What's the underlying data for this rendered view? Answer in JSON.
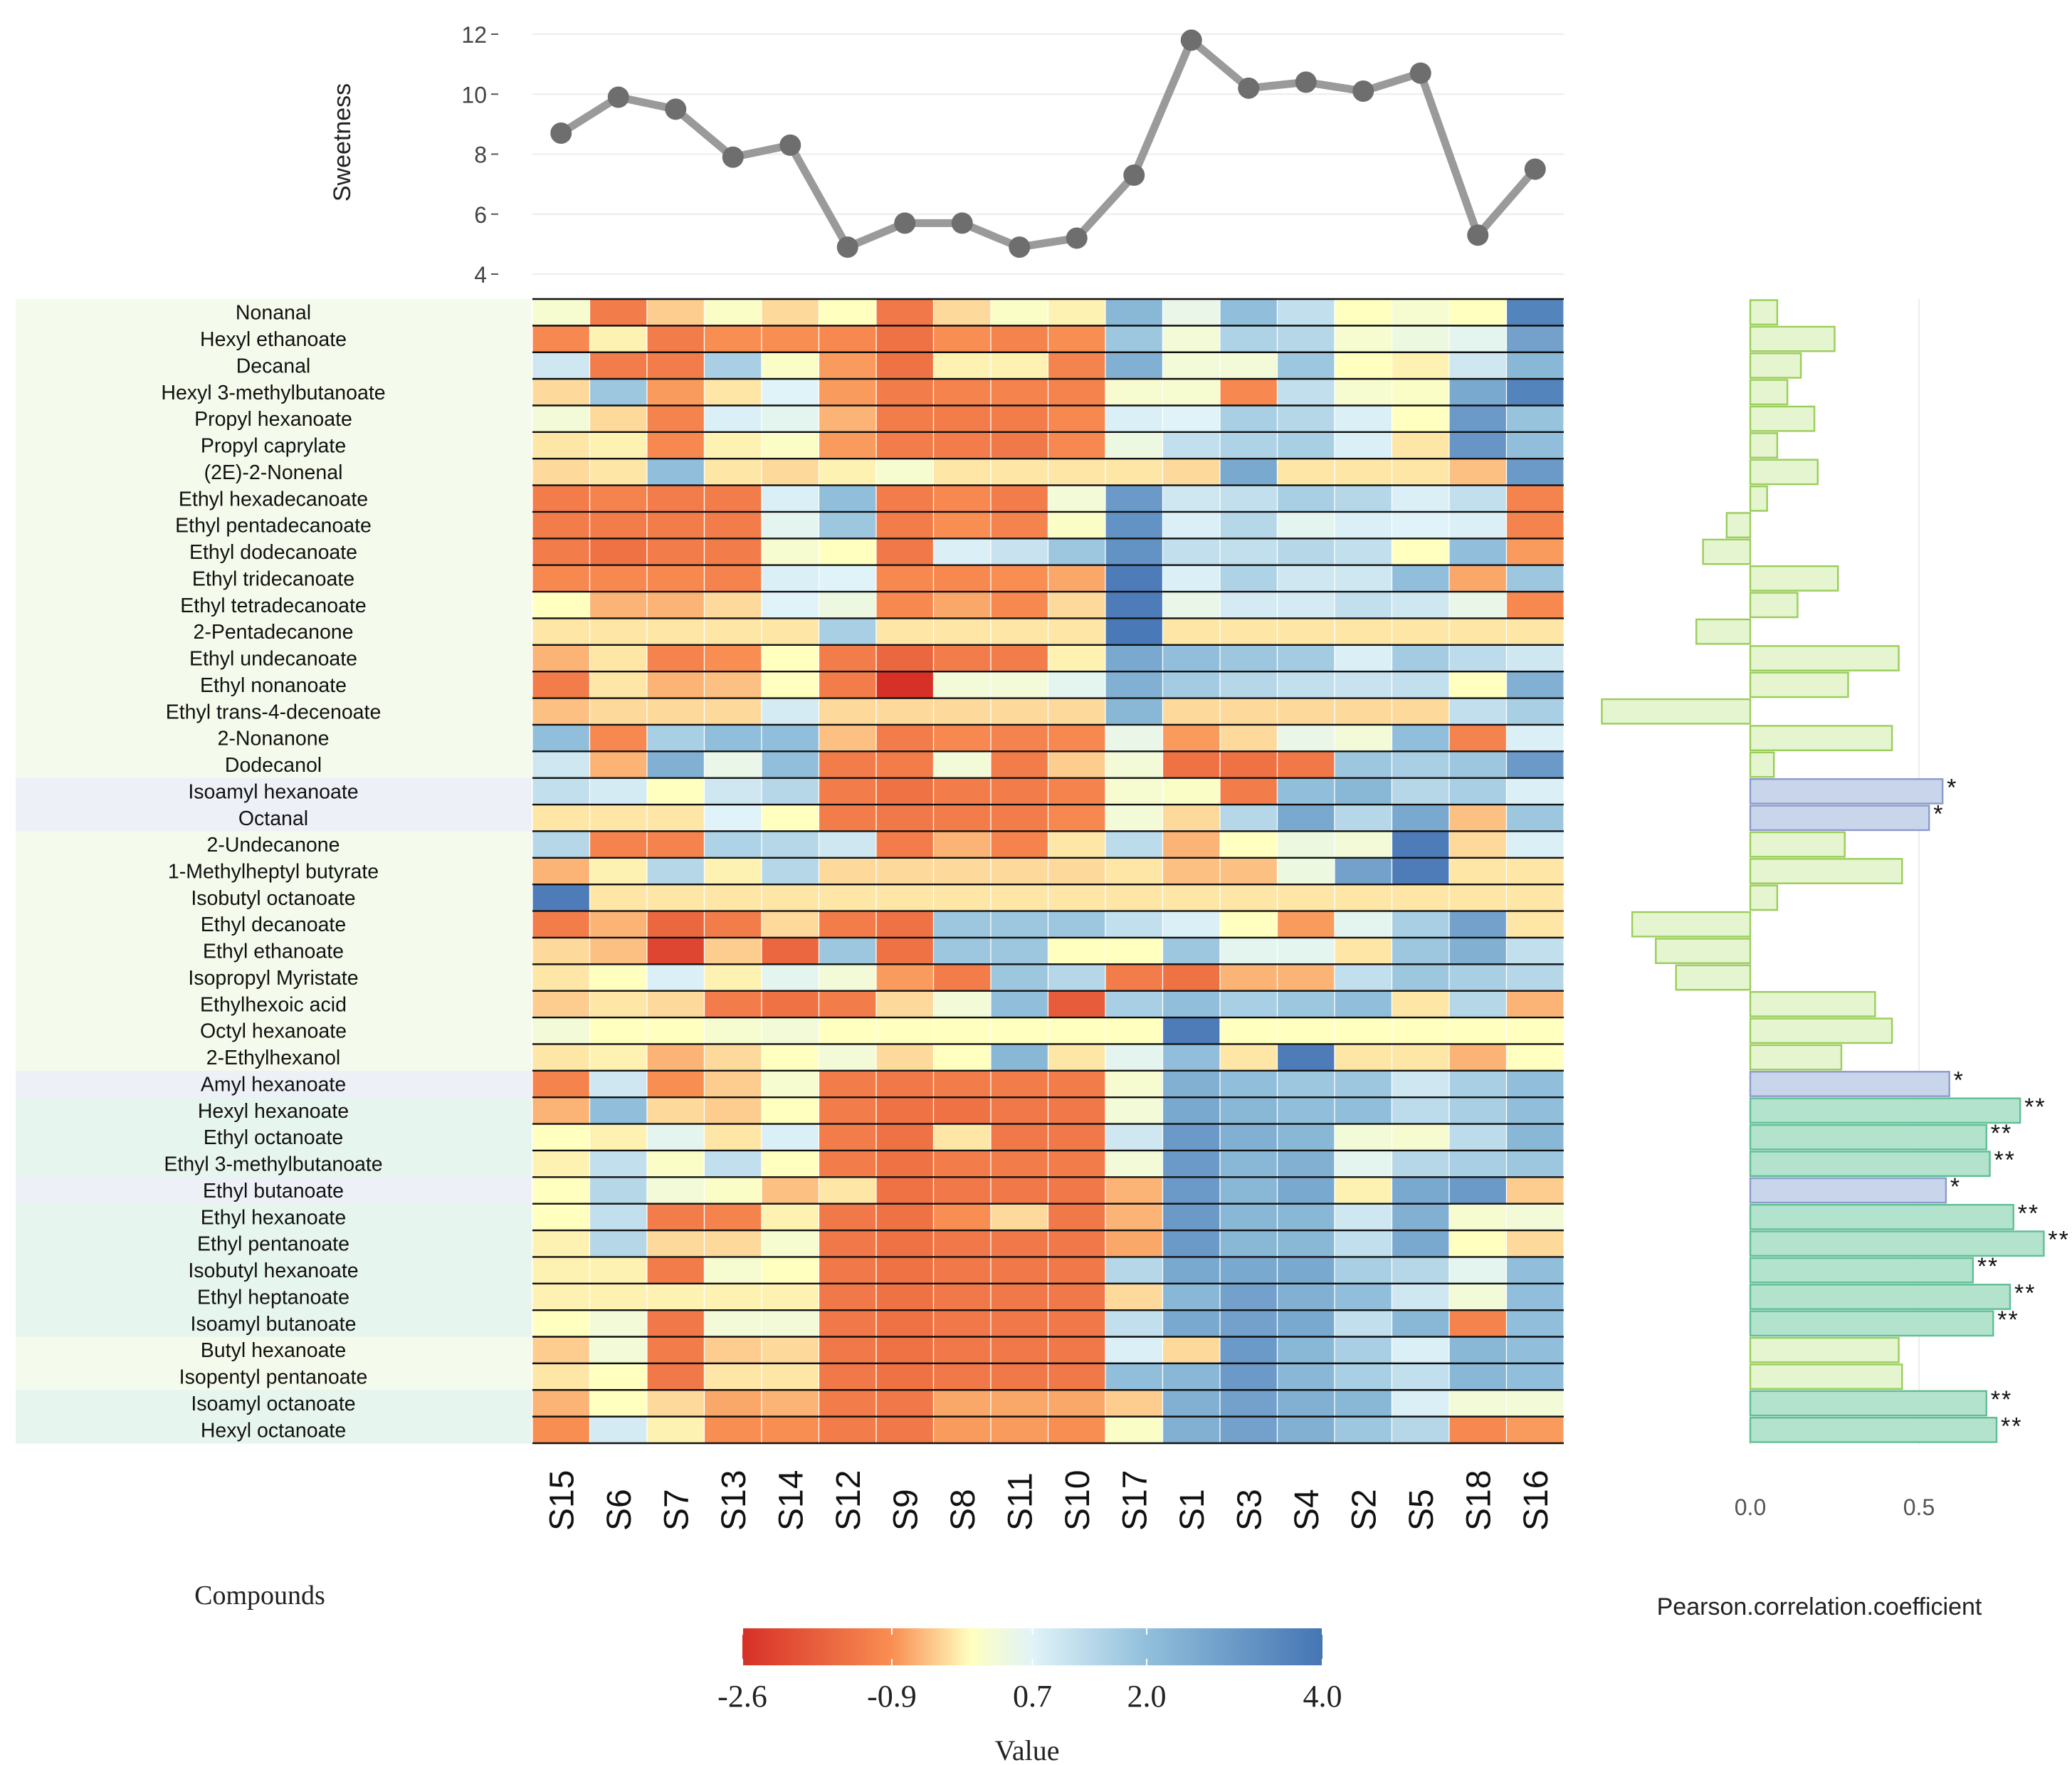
{
  "chart_data": [
    {
      "type": "line",
      "ylabel": "Sweetness",
      "ylim": [
        4,
        12
      ],
      "yticks": [
        "4",
        "6",
        "8",
        "10",
        "12"
      ],
      "x": [
        "S15",
        "S6",
        "S7",
        "S13",
        "S14",
        "S12",
        "S9",
        "S8",
        "S11",
        "S10",
        "S17",
        "S1",
        "S3",
        "S4",
        "S2",
        "S5",
        "S18",
        "S16"
      ],
      "values": [
        8.7,
        9.9,
        9.5,
        7.9,
        8.3,
        4.9,
        5.7,
        5.7,
        4.9,
        5.2,
        7.3,
        11.8,
        10.2,
        10.4,
        10.1,
        10.7,
        5.3,
        7.5
      ],
      "grid": true,
      "colors": {
        "line": "#9a9a9a",
        "point": "#6e6e6e"
      }
    },
    {
      "type": "heatmap",
      "row_title": "Compounds",
      "columns": [
        "S15",
        "S6",
        "S7",
        "S13",
        "S14",
        "S12",
        "S9",
        "S8",
        "S11",
        "S10",
        "S17",
        "S1",
        "S3",
        "S4",
        "S2",
        "S5",
        "S18",
        "S16"
      ],
      "rows": [
        "Nonanal",
        "Hexyl ethanoate",
        "Decanal",
        "Hexyl 3-methylbutanoate",
        "Propyl hexanoate",
        "Propyl caprylate",
        "(2E)-2-Nonenal",
        "Ethyl hexadecanoate",
        "Ethyl pentadecanoate",
        "Ethyl dodecanoate",
        "Ethyl tridecanoate",
        "Ethyl tetradecanoate",
        "2-Pentadecanone",
        "Ethyl undecanoate",
        "Ethyl nonanoate",
        "Ethyl trans-4-decenoate",
        "2-Nonanone",
        "Dodecanol",
        "Isoamyl hexanoate",
        "Octanal",
        "2-Undecanone",
        "1-Methylheptyl butyrate",
        "Isobutyl octanoate",
        "Ethyl decanoate",
        "Ethyl ethanoate",
        "Isopropyl Myristate",
        "Ethylhexoic acid",
        "Octyl hexanoate",
        "2-Ethylhexanol",
        "Amyl hexanoate",
        "Hexyl hexanoate",
        "Ethyl octanoate",
        "Ethyl 3-methylbutanoate",
        "Ethyl butanoate",
        "Ethyl hexanoate",
        "Ethyl pentanoate",
        "Isobutyl hexanoate",
        "Ethyl heptanoate",
        "Isoamyl butanoate",
        "Butyl hexanoate",
        "Isopentyl pentanoate",
        "Isoamyl octanoate",
        "Hexyl octanoate"
      ],
      "row_groups": [
        "weak",
        "weak",
        "weak",
        "weak",
        "weak",
        "weak",
        "weak",
        "weak",
        "weak",
        "weak",
        "weak",
        "weak",
        "weak",
        "weak",
        "weak",
        "weak",
        "weak",
        "weak",
        "sig1",
        "sig1",
        "weak",
        "weak",
        "weak",
        "weak",
        "weak",
        "weak",
        "weak",
        "weak",
        "weak",
        "sig1",
        "sig2",
        "sig2",
        "sig2",
        "sig1",
        "sig2",
        "sig2",
        "sig2",
        "sig2",
        "sig2",
        "weak",
        "weak",
        "sig2",
        "sig2"
      ],
      "values": [
        [
          0.2,
          -1.2,
          -0.4,
          0.1,
          -0.3,
          0.0,
          -1.3,
          -0.3,
          0.1,
          -0.1,
          2.2,
          0.5,
          2.0,
          1.2,
          0.0,
          0.2,
          0.0,
          3.6
        ],
        [
          -1.0,
          -0.1,
          -1.2,
          -0.9,
          -0.9,
          -1.0,
          -1.4,
          -0.9,
          -1.1,
          -0.9,
          1.8,
          0.3,
          1.5,
          1.4,
          0.2,
          0.4,
          0.6,
          2.8
        ],
        [
          1.0,
          -1.2,
          -1.2,
          1.6,
          0.1,
          -0.8,
          -1.4,
          -0.1,
          -0.1,
          -1.1,
          2.4,
          0.3,
          0.3,
          1.8,
          0.0,
          -0.1,
          1.0,
          2.2
        ],
        [
          -0.3,
          1.8,
          -0.8,
          -0.2,
          0.7,
          -0.8,
          -1.2,
          -1.1,
          -1.1,
          -1.1,
          0.2,
          0.2,
          -1.0,
          1.2,
          0.2,
          0.1,
          2.6,
          3.6
        ],
        [
          0.3,
          -0.3,
          -1.1,
          0.8,
          0.6,
          -0.6,
          -1.2,
          -1.2,
          -1.2,
          -1.0,
          0.8,
          0.7,
          1.6,
          1.4,
          0.8,
          0.0,
          3.0,
          1.9
        ],
        [
          -0.2,
          -0.1,
          -1.0,
          -0.1,
          0.1,
          -0.8,
          -1.2,
          -1.2,
          -1.3,
          -1.0,
          0.4,
          1.2,
          1.5,
          1.6,
          0.8,
          -0.2,
          3.1,
          2.0
        ],
        [
          -0.3,
          -0.2,
          2.0,
          -0.2,
          -0.3,
          -0.1,
          0.2,
          -0.2,
          -0.2,
          -0.2,
          -0.2,
          -0.3,
          2.6,
          -0.2,
          -0.2,
          -0.2,
          -0.5,
          3.0
        ],
        [
          -1.2,
          -1.1,
          -1.2,
          -1.2,
          0.8,
          2.0,
          -1.2,
          -1.0,
          -1.2,
          0.3,
          3.0,
          1.0,
          1.2,
          1.6,
          1.4,
          0.8,
          1.2,
          -1.1
        ],
        [
          -1.2,
          -1.2,
          -1.2,
          -1.2,
          0.6,
          1.8,
          -1.2,
          -0.9,
          -1.1,
          0.1,
          3.2,
          0.8,
          1.4,
          0.6,
          0.8,
          0.7,
          0.8,
          -1.1
        ],
        [
          -1.2,
          -1.4,
          -1.2,
          -1.2,
          0.2,
          0.0,
          -1.3,
          0.8,
          1.1,
          1.8,
          3.2,
          1.2,
          1.2,
          1.4,
          1.2,
          0.0,
          2.0,
          -0.8
        ],
        [
          -1.0,
          -1.0,
          -1.0,
          -1.1,
          0.8,
          0.7,
          -1.0,
          -1.0,
          -0.9,
          -0.7,
          3.8,
          0.8,
          1.5,
          1.0,
          1.0,
          2.0,
          -0.7,
          1.8
        ],
        [
          0.0,
          -0.6,
          -0.6,
          -0.3,
          0.7,
          0.4,
          -1.0,
          -0.7,
          -1.0,
          -0.3,
          3.8,
          0.5,
          0.9,
          0.9,
          1.2,
          1.0,
          0.5,
          -1.0
        ],
        [
          -0.2,
          -0.2,
          -0.2,
          -0.2,
          -0.2,
          1.6,
          -0.2,
          -0.2,
          -0.2,
          -0.2,
          3.9,
          -0.2,
          -0.2,
          -0.2,
          -0.2,
          -0.2,
          -0.2,
          -0.2
        ],
        [
          -0.6,
          -0.2,
          -1.1,
          -0.9,
          0.0,
          -1.2,
          -1.6,
          -1.2,
          -1.2,
          -0.1,
          2.6,
          2.0,
          1.8,
          1.7,
          0.8,
          1.7,
          1.3,
          1.0
        ],
        [
          -1.2,
          -0.2,
          -0.6,
          -0.5,
          0.0,
          -1.2,
          -2.6,
          0.3,
          0.3,
          0.6,
          2.4,
          1.7,
          1.4,
          1.2,
          1.1,
          1.2,
          0.0,
          2.4
        ],
        [
          -0.5,
          -0.3,
          -0.3,
          -0.3,
          0.9,
          -0.3,
          -0.3,
          -0.3,
          -0.3,
          -0.3,
          2.2,
          -0.3,
          -0.3,
          -0.3,
          -0.3,
          -0.3,
          1.2,
          1.6
        ],
        [
          2.0,
          -1.0,
          1.6,
          2.0,
          2.0,
          -0.5,
          -1.2,
          -1.0,
          -1.1,
          -1.0,
          0.5,
          -0.8,
          -0.3,
          0.5,
          0.3,
          2.0,
          -1.1,
          0.8
        ],
        [
          1.0,
          -0.6,
          2.4,
          0.5,
          2.0,
          -1.2,
          -1.2,
          0.3,
          -1.2,
          -0.4,
          0.3,
          -1.4,
          -1.4,
          -1.3,
          1.8,
          1.6,
          1.8,
          3.0
        ],
        [
          1.2,
          0.9,
          0.0,
          1.0,
          1.4,
          -1.2,
          -1.4,
          -1.2,
          -1.2,
          -1.1,
          0.2,
          0.1,
          -1.2,
          2.0,
          2.2,
          1.4,
          1.6,
          0.8
        ],
        [
          -0.2,
          -0.2,
          -0.2,
          0.7,
          0.0,
          -1.2,
          -1.3,
          -1.2,
          -1.2,
          -1.0,
          0.3,
          -0.3,
          1.4,
          2.6,
          1.4,
          2.6,
          -0.5,
          1.8
        ],
        [
          1.4,
          -1.1,
          -1.1,
          1.5,
          1.4,
          1.0,
          -1.2,
          -0.6,
          -1.1,
          -0.2,
          1.3,
          -0.6,
          0.0,
          0.4,
          0.3,
          3.8,
          -0.3,
          0.8
        ],
        [
          -0.6,
          -0.1,
          1.4,
          -0.1,
          1.4,
          -0.3,
          -0.3,
          -0.3,
          -0.3,
          -0.3,
          -0.2,
          -0.5,
          -0.5,
          0.4,
          2.8,
          3.8,
          -0.2,
          -0.2
        ],
        [
          3.8,
          -0.2,
          -0.2,
          -0.2,
          -0.2,
          -0.2,
          -0.2,
          -0.2,
          -0.2,
          -0.2,
          -0.2,
          -0.2,
          -0.2,
          -0.2,
          -0.2,
          -0.2,
          -0.2,
          -0.2
        ],
        [
          -1.2,
          -0.6,
          -1.6,
          -1.2,
          -0.3,
          -1.2,
          -1.4,
          1.8,
          1.8,
          1.8,
          1.2,
          0.8,
          0.0,
          -0.8,
          0.6,
          1.6,
          2.8,
          -0.2
        ],
        [
          -0.3,
          -0.5,
          -2.2,
          -0.4,
          -1.6,
          1.8,
          -1.4,
          1.8,
          1.8,
          0.0,
          0.0,
          1.8,
          0.6,
          0.6,
          -0.2,
          1.8,
          2.4,
          1.2
        ],
        [
          -0.2,
          0.0,
          0.8,
          -0.1,
          0.6,
          0.3,
          -0.8,
          -1.2,
          1.8,
          1.4,
          -1.2,
          -1.4,
          -0.6,
          -0.6,
          1.2,
          1.8,
          1.6,
          1.4
        ],
        [
          -0.4,
          -0.2,
          -0.3,
          -1.2,
          -1.4,
          -1.2,
          -0.3,
          0.3,
          2.0,
          -1.8,
          1.6,
          2.0,
          1.6,
          1.8,
          2.0,
          -0.2,
          1.4,
          -0.6
        ],
        [
          0.3,
          0.0,
          0.0,
          0.2,
          0.3,
          0.0,
          0.0,
          0.0,
          0.0,
          0.0,
          0.0,
          3.8,
          0.0,
          0.0,
          0.0,
          0.0,
          0.0,
          0.0
        ],
        [
          -0.2,
          -0.1,
          -0.6,
          -0.3,
          0.0,
          0.3,
          -0.3,
          0.0,
          2.2,
          -0.2,
          0.6,
          2.0,
          -0.2,
          3.8,
          -0.2,
          -0.2,
          -0.6,
          0.0
        ],
        [
          -1.1,
          1.0,
          -0.9,
          -0.4,
          0.2,
          -1.2,
          -1.3,
          -1.2,
          -1.2,
          -1.2,
          0.2,
          2.4,
          2.0,
          1.8,
          1.8,
          1.0,
          1.6,
          2.0
        ],
        [
          -0.6,
          2.0,
          -0.3,
          -0.4,
          0.0,
          -1.2,
          -1.4,
          -1.4,
          -1.3,
          -1.3,
          0.3,
          2.6,
          2.2,
          2.0,
          2.0,
          1.3,
          1.6,
          2.0
        ],
        [
          0.0,
          -0.1,
          0.6,
          -0.2,
          0.8,
          -1.2,
          -1.4,
          -0.2,
          -1.3,
          -1.3,
          1.0,
          3.0,
          2.4,
          2.2,
          0.3,
          0.2,
          1.3,
          2.2
        ],
        [
          -0.1,
          1.2,
          0.1,
          1.2,
          0.0,
          -1.2,
          -1.4,
          -1.2,
          -1.2,
          -1.2,
          0.3,
          3.0,
          2.2,
          2.4,
          0.6,
          1.4,
          1.6,
          1.8
        ],
        [
          0.0,
          1.4,
          0.3,
          0.1,
          -0.5,
          -0.2,
          -1.4,
          -1.3,
          -1.3,
          -1.3,
          -0.6,
          3.0,
          2.2,
          2.6,
          -0.1,
          2.6,
          3.0,
          -0.4
        ],
        [
          0.0,
          1.2,
          -1.2,
          -1.1,
          -0.1,
          -1.3,
          -1.4,
          -0.9,
          -0.3,
          -1.3,
          -0.6,
          3.0,
          2.2,
          2.2,
          1.0,
          2.4,
          0.2,
          0.3
        ],
        [
          -0.1,
          1.4,
          -0.3,
          -0.3,
          0.2,
          -1.3,
          -1.4,
          -1.3,
          -1.3,
          -1.3,
          -0.7,
          3.0,
          2.2,
          2.2,
          1.2,
          2.6,
          0.0,
          -0.3
        ],
        [
          -0.1,
          -0.1,
          -1.2,
          0.2,
          0.0,
          -1.3,
          -1.4,
          -1.3,
          -1.3,
          -1.3,
          1.4,
          2.6,
          2.6,
          2.6,
          1.6,
          1.4,
          0.6,
          2.0
        ],
        [
          -0.1,
          -0.1,
          -0.1,
          -0.1,
          -0.1,
          -1.3,
          -1.4,
          -1.3,
          -1.3,
          -1.3,
          -0.3,
          2.2,
          2.8,
          2.4,
          2.0,
          1.0,
          0.3,
          2.0
        ],
        [
          0.0,
          0.3,
          -1.3,
          0.3,
          0.3,
          -1.3,
          -1.4,
          -1.3,
          -1.3,
          -1.3,
          1.2,
          2.6,
          2.8,
          2.6,
          1.2,
          2.2,
          -1.1,
          2.0
        ],
        [
          -0.4,
          0.3,
          -1.2,
          -0.4,
          -0.3,
          -1.3,
          -1.4,
          -1.3,
          -1.3,
          -1.3,
          0.8,
          -0.3,
          3.0,
          2.2,
          1.6,
          0.8,
          2.2,
          2.0
        ],
        [
          -0.2,
          0.0,
          -1.3,
          -0.2,
          -0.2,
          -1.3,
          -1.4,
          -1.3,
          -1.3,
          -1.3,
          2.0,
          2.2,
          3.0,
          2.2,
          1.6,
          1.2,
          2.2,
          2.0
        ],
        [
          -0.6,
          0.0,
          -0.3,
          -0.7,
          -0.6,
          -1.2,
          -1.3,
          -0.7,
          -0.7,
          -0.7,
          -0.4,
          2.4,
          2.8,
          2.4,
          2.2,
          0.8,
          0.3,
          0.3
        ],
        [
          -0.9,
          0.9,
          -0.1,
          -0.9,
          -0.9,
          -1.2,
          -1.3,
          -0.8,
          -0.8,
          -0.9,
          0.1,
          2.4,
          2.8,
          2.4,
          1.8,
          1.4,
          -1.0,
          -0.8
        ]
      ],
      "legend": {
        "title": "Value",
        "tick_labels": [
          "-2.6",
          "-0.9",
          "0.7",
          "2.0",
          "4.0"
        ],
        "stops": [
          {
            "value": -2.6,
            "color": "#d73027"
          },
          {
            "value": -0.9,
            "color": "#f98e52"
          },
          {
            "value": 0.0,
            "color": "#ffffbf"
          },
          {
            "value": 0.7,
            "color": "#e0f3f8"
          },
          {
            "value": 2.0,
            "color": "#91bfdb"
          },
          {
            "value": 4.0,
            "color": "#4575b4"
          }
        ]
      }
    },
    {
      "type": "bar",
      "orientation": "horizontal",
      "xlabel": "Pearson.correlation.coefficient",
      "xticks": [
        "0.0",
        "0.5"
      ],
      "xlim": [
        -0.44,
        0.9
      ],
      "values": [
        0.08,
        0.25,
        0.15,
        0.11,
        0.19,
        0.08,
        0.2,
        0.05,
        -0.07,
        -0.14,
        0.26,
        0.14,
        -0.16,
        0.44,
        0.29,
        -0.44,
        0.42,
        0.07,
        0.57,
        0.53,
        0.28,
        0.45,
        0.08,
        -0.35,
        -0.28,
        -0.22,
        0.37,
        0.42,
        0.27,
        0.59,
        0.8,
        0.7,
        0.71,
        0.58,
        0.78,
        0.87,
        0.66,
        0.77,
        0.72,
        0.44,
        0.45,
        0.7,
        0.73
      ],
      "significance": [
        "",
        "",
        "",
        "",
        "",
        "",
        "",
        "",
        "",
        "",
        "",
        "",
        "",
        "",
        "",
        "",
        "",
        "",
        "*",
        "*",
        "",
        "",
        "",
        "",
        "",
        "",
        "",
        "",
        "",
        "*",
        "**",
        "**",
        "**",
        "*",
        "**",
        "**",
        "**",
        "**",
        "**",
        "",
        "",
        "**",
        "**"
      ],
      "colors": {
        "weak_fill": "#e5f5d0",
        "weak_stroke": "#9acd5a",
        "sig1_fill": "#c9d5ea",
        "sig1_stroke": "#8b9ccb",
        "sig2_fill": "#b3e2cd",
        "sig2_stroke": "#5fbf94"
      }
    }
  ],
  "colors": {
    "row_bg_weak": "#f5fbec",
    "row_bg_sig1": "#eef0f8",
    "row_bg_sig2": "#e7f5ef"
  }
}
